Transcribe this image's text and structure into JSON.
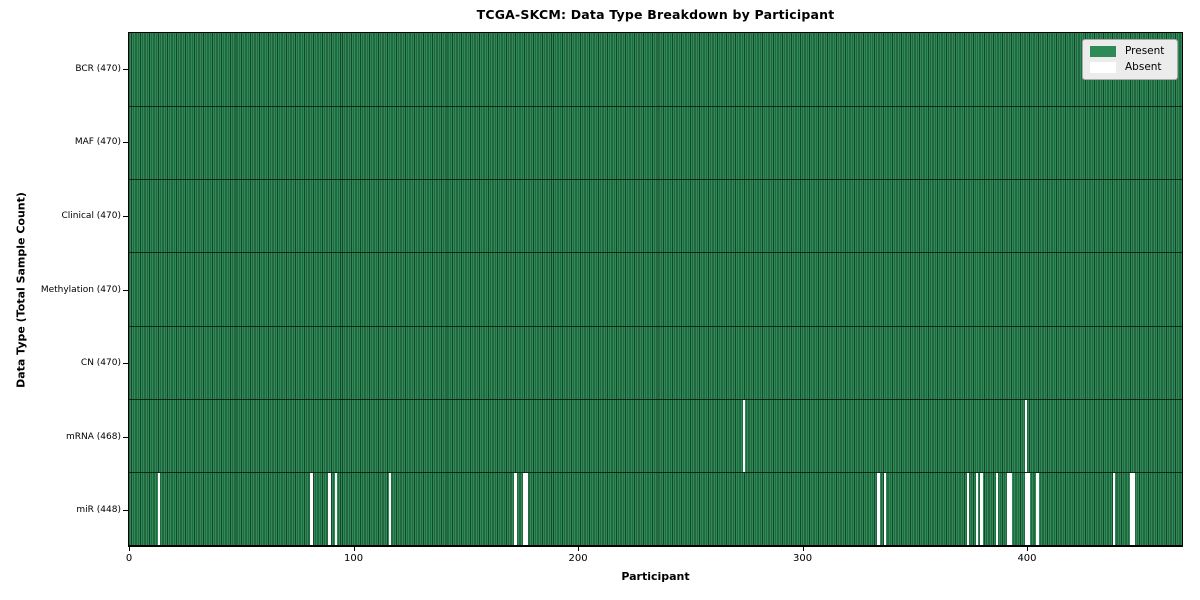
{
  "chart_data": {
    "type": "heatmap",
    "title": "TCGA-SKCM: Data Type Breakdown by Participant",
    "xlabel": "Participant",
    "ylabel": "Data Type (Total Sample Count)",
    "n_participants": 470,
    "x_ticks": [
      0,
      100,
      200,
      300,
      400
    ],
    "colors": {
      "present": "#2e8b57",
      "absent": "#ffffff",
      "bar_edge": "#10341f",
      "row_separator": "#1b3524",
      "legend_bg": "#ececec",
      "legend_border": "#aaaaaa"
    },
    "legend": {
      "entries": [
        {
          "label": "Present",
          "color": "#2e8b57"
        },
        {
          "label": "Absent",
          "color": "#ffffff"
        }
      ]
    },
    "rows": [
      {
        "label": "BCR (470)",
        "data_type": "BCR",
        "total": 470,
        "absent_participants": []
      },
      {
        "label": "MAF (470)",
        "data_type": "MAF",
        "total": 470,
        "absent_participants": []
      },
      {
        "label": "Clinical (470)",
        "data_type": "Clinical",
        "total": 470,
        "absent_participants": []
      },
      {
        "label": "Methylation (470)",
        "data_type": "Methylation",
        "total": 470,
        "absent_participants": []
      },
      {
        "label": "CN (470)",
        "data_type": "CN",
        "total": 470,
        "absent_participants": []
      },
      {
        "label": "mRNA (468)",
        "data_type": "mRNA",
        "total": 468,
        "absent_participants": [
          274,
          400
        ]
      },
      {
        "label": "miR (448)",
        "data_type": "miR",
        "total": 448,
        "absent_participants": [
          13,
          81,
          89,
          92,
          116,
          172,
          176,
          177,
          334,
          337,
          374,
          378,
          380,
          387,
          392,
          393,
          400,
          401,
          405,
          439,
          447,
          448
        ]
      }
    ]
  }
}
